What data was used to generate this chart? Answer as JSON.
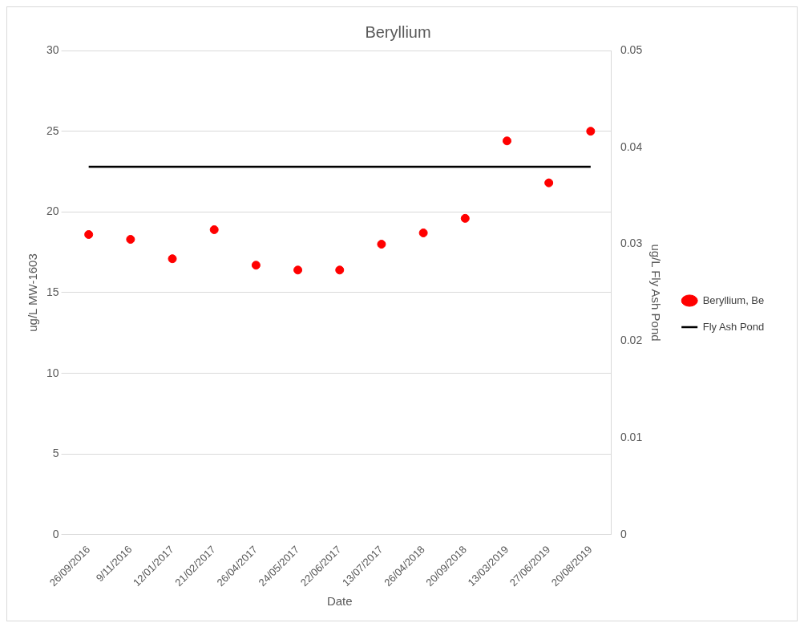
{
  "chart_data": {
    "type": "scatter",
    "title": "Beryllium",
    "xlabel": "Date",
    "ylabel": "ug/L MW-1603",
    "y2label": "ug/L Fly Ash Pond",
    "categories": [
      "26/09/2016",
      "9/11/2016",
      "12/01/2017",
      "21/02/2017",
      "26/04/2017",
      "24/05/2017",
      "22/06/2017",
      "13/07/2017",
      "26/04/2018",
      "20/09/2018",
      "13/03/2019",
      "27/06/2019",
      "20/08/2019"
    ],
    "series": [
      {
        "name": "Beryllium, Be",
        "color": "#ff0000",
        "marker": "circle",
        "values": [
          18.6,
          18.3,
          17.1,
          18.9,
          16.7,
          16.4,
          16.4,
          18.0,
          18.7,
          19.6,
          24.4,
          21.8,
          25.0
        ]
      },
      {
        "name": "Fly Ash Pond",
        "type": "line",
        "axis": "y2",
        "color": "#000000",
        "line_style": "solid",
        "values": [
          0.038,
          0.038,
          0.038,
          0.038,
          0.038,
          0.038,
          0.038,
          0.038,
          0.038,
          0.038,
          0.038,
          0.038,
          0.038
        ]
      }
    ],
    "ylim": [
      0,
      30
    ],
    "yticks": [
      0,
      5,
      10,
      15,
      20,
      25,
      30
    ],
    "y2lim": [
      0,
      0.05
    ],
    "y2ticks": [
      0,
      0.01,
      0.02,
      0.03,
      0.04,
      0.05
    ],
    "grid": "y",
    "legend": "right"
  }
}
